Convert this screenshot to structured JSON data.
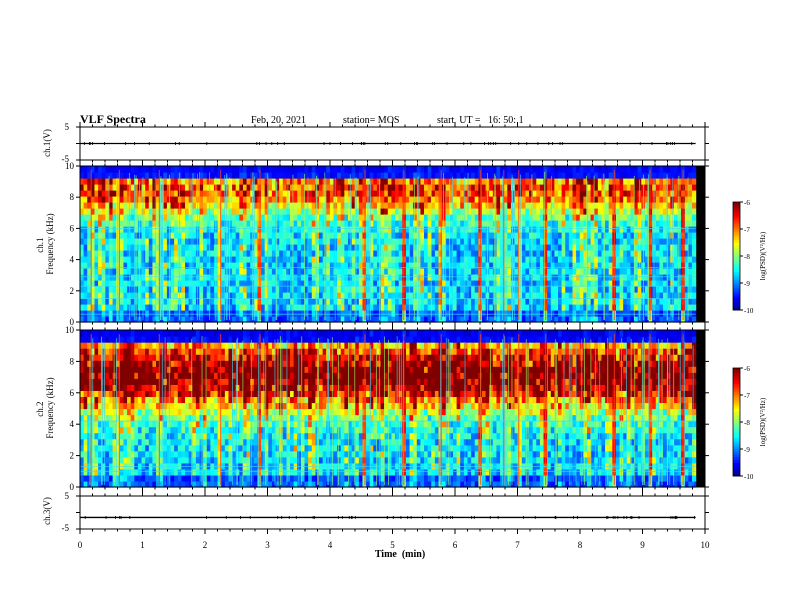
{
  "header": {
    "title": "VLF Spectra",
    "date": "Feb. 20, 2021",
    "station": "station= MOS",
    "start": "start  UT =   16: 50: 1"
  },
  "chart_data": [
    {
      "type": "line",
      "name": "ch1-waveform",
      "ylabel": "ch.1(V)",
      "ylim": [
        -5,
        5
      ],
      "ytick_labels": [
        "5",
        "-5"
      ],
      "xlim": [
        0,
        10
      ],
      "series": [
        {
          "x": [
            0,
            9.85
          ],
          "y": [
            0,
            0
          ]
        }
      ]
    },
    {
      "type": "heatmap",
      "name": "ch1-spectrogram",
      "ylabel": "ch.1\nFrequency (kHz)",
      "xlim": [
        0,
        10
      ],
      "ylim": [
        0,
        10
      ],
      "yticks": [
        0,
        2,
        4,
        6,
        8,
        10
      ],
      "data_xmax": 9.85,
      "colorbar": {
        "label": "log(PSD)(V²/Hz)",
        "range": [
          -10,
          -6
        ],
        "ticks": [
          "-6",
          "-7",
          "-8",
          "-9",
          "-10"
        ]
      },
      "band_peak_khz": 8.5,
      "band_width_khz": 1.6,
      "band_strength": 0.55,
      "lines_khz": [
        0.5,
        1.5,
        2.3,
        2.9,
        3.5,
        6.0
      ],
      "bursts_min": [
        0.18,
        0.63,
        1.27,
        2.25,
        2.88,
        4.56,
        5.18,
        5.78,
        6.41,
        6.78,
        7.02,
        7.45,
        8.55,
        9.12,
        9.65
      ]
    },
    {
      "type": "heatmap",
      "name": "ch2-spectrogram",
      "ylabel": "ch.2\nFrequency (kHz)",
      "xlim": [
        0,
        10
      ],
      "ylim": [
        0,
        10
      ],
      "yticks": [
        0,
        2,
        4,
        6,
        8,
        10
      ],
      "data_xmax": 9.85,
      "colorbar": {
        "label": "log(PSD)(V²/Hz)",
        "range": [
          -10,
          -6
        ],
        "ticks": [
          "-6",
          "-7",
          "-8",
          "-9",
          "-10"
        ]
      },
      "band_peak_khz": 7.2,
      "band_width_khz": 2.2,
      "band_strength": 0.85,
      "lines_khz": [
        1.0,
        1.3,
        4.2
      ],
      "bursts_min": [
        0.18,
        0.63,
        1.27,
        2.25,
        2.88,
        4.56,
        5.18,
        5.78,
        6.41,
        6.78,
        7.02,
        7.45,
        8.55,
        9.12,
        9.65
      ]
    },
    {
      "type": "line",
      "name": "ch3-waveform",
      "ylabel": "ch.3(V)",
      "ylim": [
        -5,
        5
      ],
      "ytick_labels": [
        "5",
        "-5"
      ],
      "xlim": [
        0,
        10
      ],
      "series": [
        {
          "x": [
            0,
            9.85
          ],
          "y": [
            -1.5,
            -1.5
          ]
        }
      ]
    }
  ],
  "xaxis": {
    "label": "Time  (min)",
    "tick_labels": [
      "0",
      "1",
      "2",
      "3",
      "4",
      "5",
      "6",
      "7",
      "8",
      "9",
      "10"
    ]
  }
}
